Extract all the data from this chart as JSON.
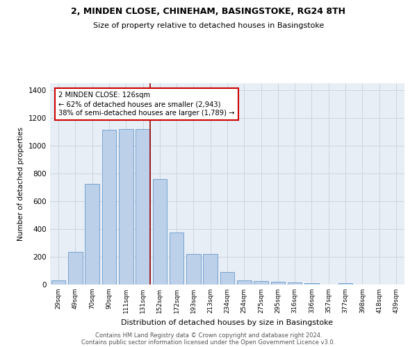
{
  "title1": "2, MINDEN CLOSE, CHINEHAM, BASINGSTOKE, RG24 8TH",
  "title2": "Size of property relative to detached houses in Basingstoke",
  "xlabel": "Distribution of detached houses by size in Basingstoke",
  "ylabel": "Number of detached properties",
  "categories": [
    "29sqm",
    "49sqm",
    "70sqm",
    "90sqm",
    "111sqm",
    "131sqm",
    "152sqm",
    "172sqm",
    "193sqm",
    "213sqm",
    "234sqm",
    "254sqm",
    "275sqm",
    "295sqm",
    "316sqm",
    "336sqm",
    "357sqm",
    "377sqm",
    "398sqm",
    "418sqm",
    "439sqm"
  ],
  "bar_heights": [
    30,
    235,
    725,
    1115,
    1120,
    1120,
    760,
    375,
    220,
    220,
    90,
    30,
    25,
    20,
    15,
    10,
    0,
    10,
    0,
    0,
    0
  ],
  "bar_color": "#bdd0e9",
  "bar_edge_color": "#6699cc",
  "annotation_text": "2 MINDEN CLOSE: 126sqm\n← 62% of detached houses are smaller (2,943)\n38% of semi-detached houses are larger (1,789) →",
  "annotation_box_color": "#ffffff",
  "annotation_box_edge": "#cc0000",
  "line_color": "#990000",
  "grid_color": "#ccd5e0",
  "bg_color": "#e8eef5",
  "footnote1": "Contains HM Land Registry data © Crown copyright and database right 2024.",
  "footnote2": "Contains public sector information licensed under the Open Government Licence v3.0.",
  "ylim": [
    0,
    1450
  ],
  "yticks": [
    0,
    200,
    400,
    600,
    800,
    1000,
    1200,
    1400
  ]
}
